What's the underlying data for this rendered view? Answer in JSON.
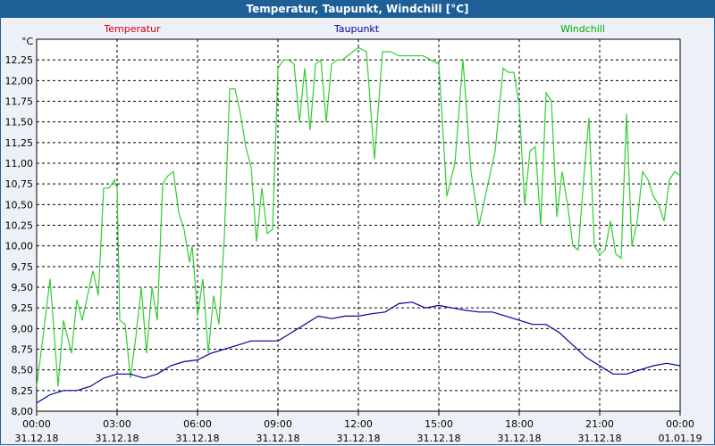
{
  "window": {
    "title": "Temperatur, Taupunkt, Windchill [°C]"
  },
  "chart_data": {
    "type": "line",
    "title": "Temperatur, Taupunkt, Windchill [°C]",
    "ylabel": "°C",
    "ylim": [
      8.0,
      12.5
    ],
    "y_ticks": [
      "8,00",
      "8,25",
      "8,50",
      "8,75",
      "9,00",
      "9,25",
      "9,50",
      "9,75",
      "10,00",
      "10,25",
      "10,50",
      "10,75",
      "11,00",
      "11,25",
      "11,50",
      "11,75",
      "12,00",
      "12,25"
    ],
    "x_ticks": [
      {
        "time": "00:00",
        "date": "31.12.18"
      },
      {
        "time": "03:00",
        "date": "31.12.18"
      },
      {
        "time": "06:00",
        "date": "31.12.18"
      },
      {
        "time": "09:00",
        "date": "31.12.18"
      },
      {
        "time": "12:00",
        "date": "31.12.18"
      },
      {
        "time": "15:00",
        "date": "31.12.18"
      },
      {
        "time": "18:00",
        "date": "31.12.18"
      },
      {
        "time": "21:00",
        "date": "31.12.18"
      },
      {
        "time": "00:00",
        "date": "01.01.19"
      }
    ],
    "grid": true,
    "legend": [
      {
        "name": "Temperatur",
        "color": "#cc0000"
      },
      {
        "name": "Taupunkt",
        "color": "#000099"
      },
      {
        "name": "Windchill",
        "color": "#00aa00"
      }
    ],
    "series": [
      {
        "name": "Windchill",
        "color": "#33cc33",
        "x_hours": [
          0,
          0.2,
          0.5,
          0.8,
          1.0,
          1.3,
          1.5,
          1.7,
          1.9,
          2.1,
          2.3,
          2.5,
          2.7,
          2.9,
          3.0,
          3.1,
          3.3,
          3.5,
          3.7,
          3.9,
          4.1,
          4.3,
          4.5,
          4.7,
          4.9,
          5.1,
          5.3,
          5.5,
          5.7,
          5.8,
          5.9,
          6.0,
          6.2,
          6.4,
          6.6,
          6.8,
          7.0,
          7.2,
          7.4,
          7.6,
          7.8,
          8.0,
          8.2,
          8.4,
          8.6,
          8.8,
          9.0,
          9.2,
          9.4,
          9.6,
          9.8,
          10.0,
          10.2,
          10.4,
          10.6,
          10.8,
          11.0,
          11.2,
          11.4,
          11.6,
          11.8,
          12.0,
          12.3,
          12.6,
          12.9,
          13.2,
          13.5,
          13.8,
          14.1,
          14.4,
          14.7,
          15.0,
          15.3,
          15.6,
          15.9,
          16.2,
          16.5,
          16.8,
          17.1,
          17.4,
          17.6,
          17.8,
          18.0,
          18.2,
          18.4,
          18.6,
          18.8,
          19.0,
          19.2,
          19.4,
          19.6,
          19.8,
          20.0,
          20.2,
          20.4,
          20.6,
          20.8,
          21.0,
          21.2,
          21.4,
          21.6,
          21.8,
          22.0,
          22.2,
          22.4,
          22.6,
          22.8,
          23.0,
          23.2,
          23.4,
          23.6,
          23.8,
          24.0
        ],
        "values": [
          8.3,
          8.8,
          9.6,
          8.3,
          9.1,
          8.7,
          9.35,
          9.1,
          9.4,
          9.7,
          9.4,
          10.7,
          10.7,
          10.8,
          10.7,
          9.1,
          9.05,
          8.4,
          8.9,
          9.5,
          8.7,
          9.5,
          9.1,
          10.75,
          10.85,
          10.9,
          10.4,
          10.2,
          9.8,
          10.0,
          9.6,
          9.15,
          9.6,
          8.7,
          9.4,
          9.05,
          10.1,
          11.9,
          11.9,
          11.6,
          11.2,
          10.95,
          10.05,
          10.7,
          10.15,
          10.2,
          12.15,
          12.25,
          12.25,
          12.2,
          11.5,
          12.15,
          11.4,
          12.2,
          12.25,
          11.5,
          12.2,
          12.25,
          12.25,
          12.3,
          12.35,
          12.4,
          12.35,
          11.05,
          12.35,
          12.35,
          12.3,
          12.3,
          12.3,
          12.3,
          12.25,
          12.2,
          10.6,
          11.0,
          12.25,
          10.9,
          10.25,
          10.7,
          11.15,
          12.15,
          12.1,
          12.1,
          11.7,
          10.5,
          11.15,
          11.2,
          10.25,
          11.85,
          11.75,
          10.35,
          10.9,
          10.5,
          10.0,
          9.95,
          10.8,
          11.55,
          10.0,
          9.9,
          9.95,
          10.3,
          9.9,
          9.85,
          11.6,
          10.0,
          10.3,
          10.9,
          10.8,
          10.6,
          10.5,
          10.3,
          10.8,
          10.9,
          10.85
        ],
        "note_unused": ""
      },
      {
        "name": "Taupunkt",
        "color": "#000099",
        "x_hours": [
          0,
          0.5,
          1.0,
          1.5,
          2.0,
          2.5,
          3.0,
          3.5,
          4.0,
          4.5,
          5.0,
          5.5,
          6.0,
          6.5,
          7.0,
          7.5,
          8.0,
          8.5,
          9.0,
          9.5,
          10.0,
          10.5,
          11.0,
          11.5,
          12.0,
          12.5,
          13.0,
          13.5,
          14.0,
          14.5,
          15.0,
          15.5,
          16.0,
          16.5,
          17.0,
          17.5,
          18.0,
          18.5,
          19.0,
          19.5,
          20.0,
          20.5,
          21.0,
          21.5,
          22.0,
          22.5,
          23.0,
          23.5,
          24.0
        ],
        "values": [
          8.1,
          8.2,
          8.25,
          8.25,
          8.3,
          8.4,
          8.45,
          8.45,
          8.4,
          8.45,
          8.55,
          8.6,
          8.62,
          8.7,
          8.75,
          8.8,
          8.85,
          8.85,
          8.85,
          8.95,
          9.05,
          9.15,
          9.12,
          9.15,
          9.15,
          9.18,
          9.2,
          9.3,
          9.32,
          9.25,
          9.28,
          9.25,
          9.22,
          9.2,
          9.2,
          9.15,
          9.1,
          9.05,
          9.05,
          8.95,
          8.8,
          8.65,
          8.55,
          8.45,
          8.45,
          8.5,
          8.55,
          8.58,
          8.55
        ]
      }
    ]
  }
}
